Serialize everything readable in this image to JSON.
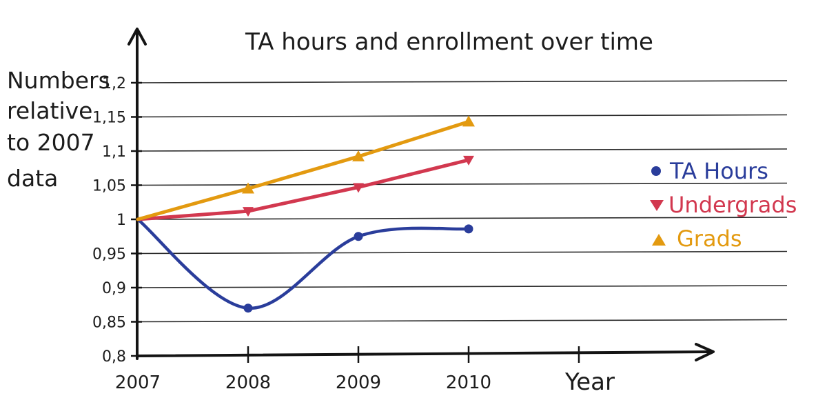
{
  "chart_data": {
    "type": "line",
    "title": "TA hours and enrollment over time",
    "ylabel": [
      "Numbers",
      "relative",
      "to 2007",
      "data"
    ],
    "xlabel": "Year",
    "x": [
      2007,
      2008,
      2009,
      2010
    ],
    "xtick_labels": [
      "2007",
      "2008",
      "2009",
      "2010"
    ],
    "xlim": [
      2007,
      2011
    ],
    "ylim": [
      0.8,
      1.2
    ],
    "yticks": [
      0.8,
      0.85,
      0.9,
      0.95,
      1,
      1.05,
      1.1,
      1.15,
      1.2
    ],
    "ytick_labels": [
      "0,8",
      "0,85",
      "0,9",
      "0,95",
      "1",
      "1,05",
      "1,1",
      "1,15",
      "1,2"
    ],
    "grid": true,
    "legend_position": "right",
    "series": [
      {
        "name": "TA Hours",
        "values": [
          1.0,
          0.87,
          0.975,
          0.986
        ],
        "color": "#2a3d9b",
        "marker": "circle",
        "smooth": true
      },
      {
        "name": "Undergrads",
        "values": [
          1.0,
          1.012,
          1.047,
          1.087
        ],
        "color": "#d2384f",
        "marker": "triangle-down",
        "smooth": false
      },
      {
        "name": "Grads",
        "values": [
          1.0,
          1.045,
          1.092,
          1.143
        ],
        "color": "#e39a10",
        "marker": "triangle-up",
        "smooth": false
      }
    ]
  }
}
